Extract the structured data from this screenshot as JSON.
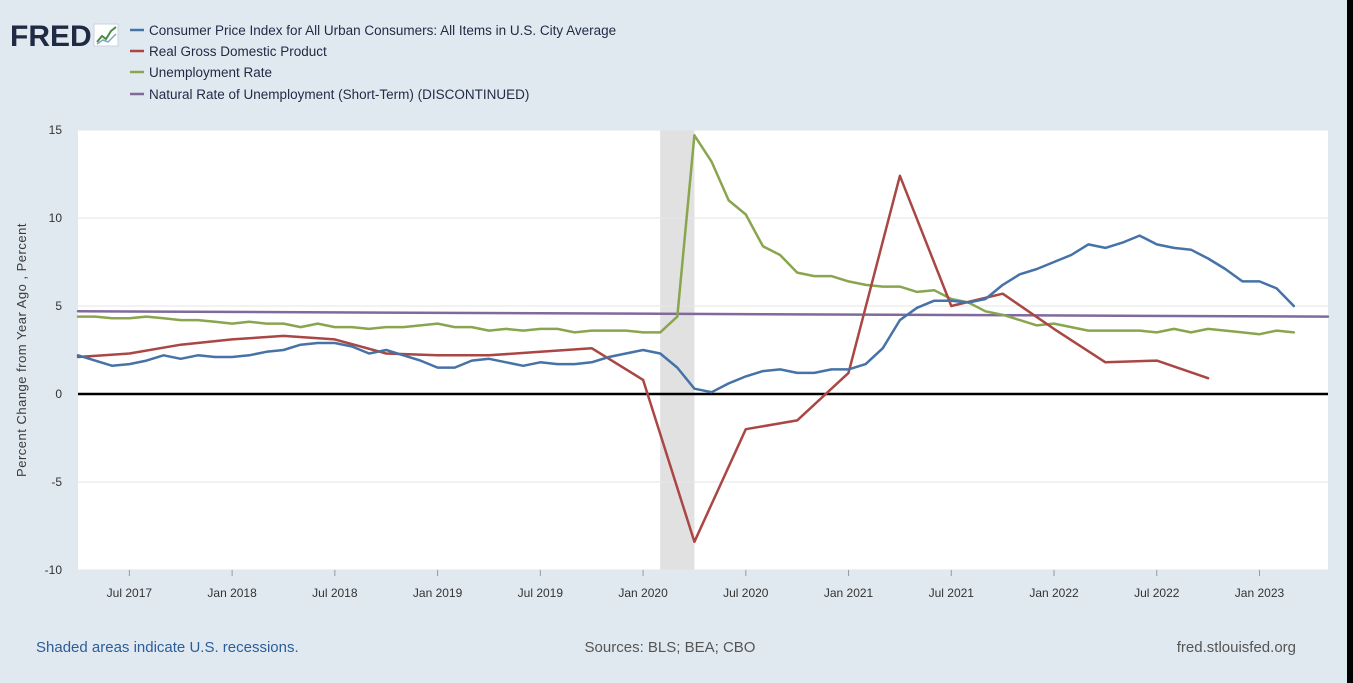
{
  "header": {
    "logo_text": "FRED",
    "legend": [
      {
        "label": "Consumer Price Index for All Urban Consumers: All Items in U.S. City Average",
        "color": "#4572a7"
      },
      {
        "label": "Real Gross Domestic Product",
        "color": "#aa4643"
      },
      {
        "label": "Unemployment Rate",
        "color": "#89a54e"
      },
      {
        "label": "Natural Rate of Unemployment (Short-Term) (DISCONTINUED)",
        "color": "#80699b"
      }
    ]
  },
  "footer": {
    "note": "Shaded areas indicate U.S. recessions.",
    "sources": "Sources: BLS; BEA; CBO",
    "site": "fred.stlouisfed.org"
  },
  "chart_data": {
    "type": "line",
    "ylabel": "Percent Change from Year Ago , Percent",
    "ylim": [
      -10,
      15
    ],
    "yticks": [
      15,
      10,
      5,
      0,
      -5,
      -10
    ],
    "xlim": [
      "2017-04-01",
      "2023-05-01"
    ],
    "xticks": [
      "Jul 2017",
      "Jan 2018",
      "Jul 2018",
      "Jan 2019",
      "Jul 2019",
      "Jan 2020",
      "Jul 2020",
      "Jan 2021",
      "Jul 2021",
      "Jan 2022",
      "Jul 2022",
      "Jan 2023"
    ],
    "grid": true,
    "zero_line": true,
    "recession_shading": {
      "start": "2020-02",
      "end": "2020-04"
    },
    "series": [
      {
        "name": "Consumer Price Index for All Urban Consumers: All Items in U.S. City Average",
        "color": "#4572a7",
        "x": [
          "2017-04",
          "2017-05",
          "2017-06",
          "2017-07",
          "2017-08",
          "2017-09",
          "2017-10",
          "2017-11",
          "2017-12",
          "2018-01",
          "2018-02",
          "2018-03",
          "2018-04",
          "2018-05",
          "2018-06",
          "2018-07",
          "2018-08",
          "2018-09",
          "2018-10",
          "2018-11",
          "2018-12",
          "2019-01",
          "2019-02",
          "2019-03",
          "2019-04",
          "2019-05",
          "2019-06",
          "2019-07",
          "2019-08",
          "2019-09",
          "2019-10",
          "2019-11",
          "2019-12",
          "2020-01",
          "2020-02",
          "2020-03",
          "2020-04",
          "2020-05",
          "2020-06",
          "2020-07",
          "2020-08",
          "2020-09",
          "2020-10",
          "2020-11",
          "2020-12",
          "2021-01",
          "2021-02",
          "2021-03",
          "2021-04",
          "2021-05",
          "2021-06",
          "2021-07",
          "2021-08",
          "2021-09",
          "2021-10",
          "2021-11",
          "2021-12",
          "2022-01",
          "2022-02",
          "2022-03",
          "2022-04",
          "2022-05",
          "2022-06",
          "2022-07",
          "2022-08",
          "2022-09",
          "2022-10",
          "2022-11",
          "2022-12",
          "2023-01",
          "2023-02",
          "2023-03"
        ],
        "values": [
          2.2,
          1.9,
          1.6,
          1.7,
          1.9,
          2.2,
          2.0,
          2.2,
          2.1,
          2.1,
          2.2,
          2.4,
          2.5,
          2.8,
          2.9,
          2.9,
          2.7,
          2.3,
          2.5,
          2.2,
          1.9,
          1.5,
          1.5,
          1.9,
          2.0,
          1.8,
          1.6,
          1.8,
          1.7,
          1.7,
          1.8,
          2.1,
          2.3,
          2.5,
          2.3,
          1.5,
          0.3,
          0.1,
          0.6,
          1.0,
          1.3,
          1.4,
          1.2,
          1.2,
          1.4,
          1.4,
          1.7,
          2.6,
          4.2,
          4.9,
          5.3,
          5.3,
          5.2,
          5.4,
          6.2,
          6.8,
          7.1,
          7.5,
          7.9,
          8.5,
          8.3,
          8.6,
          9.0,
          8.5,
          8.3,
          8.2,
          7.7,
          7.1,
          6.4,
          6.4,
          6.0,
          5.0
        ]
      },
      {
        "name": "Real Gross Domestic Product",
        "color": "#aa4643",
        "x": [
          "2017-04",
          "2017-07",
          "2017-10",
          "2018-01",
          "2018-04",
          "2018-07",
          "2018-10",
          "2019-01",
          "2019-04",
          "2019-07",
          "2019-10",
          "2020-01",
          "2020-04",
          "2020-07",
          "2020-10",
          "2021-01",
          "2021-04",
          "2021-07",
          "2021-10",
          "2022-01",
          "2022-04",
          "2022-07",
          "2022-10"
        ],
        "values": [
          2.1,
          2.3,
          2.8,
          3.1,
          3.3,
          3.1,
          2.3,
          2.2,
          2.2,
          2.4,
          2.6,
          0.8,
          -8.4,
          -2.0,
          -1.5,
          1.2,
          12.4,
          5.0,
          5.7,
          3.7,
          1.8,
          1.9,
          0.9
        ]
      },
      {
        "name": "Unemployment Rate",
        "color": "#89a54e",
        "x": [
          "2017-04",
          "2017-05",
          "2017-06",
          "2017-07",
          "2017-08",
          "2017-09",
          "2017-10",
          "2017-11",
          "2017-12",
          "2018-01",
          "2018-02",
          "2018-03",
          "2018-04",
          "2018-05",
          "2018-06",
          "2018-07",
          "2018-08",
          "2018-09",
          "2018-10",
          "2018-11",
          "2018-12",
          "2019-01",
          "2019-02",
          "2019-03",
          "2019-04",
          "2019-05",
          "2019-06",
          "2019-07",
          "2019-08",
          "2019-09",
          "2019-10",
          "2019-11",
          "2019-12",
          "2020-01",
          "2020-02",
          "2020-03",
          "2020-04",
          "2020-05",
          "2020-06",
          "2020-07",
          "2020-08",
          "2020-09",
          "2020-10",
          "2020-11",
          "2020-12",
          "2021-01",
          "2021-02",
          "2021-03",
          "2021-04",
          "2021-05",
          "2021-06",
          "2021-07",
          "2021-08",
          "2021-09",
          "2021-10",
          "2021-11",
          "2021-12",
          "2022-01",
          "2022-02",
          "2022-03",
          "2022-04",
          "2022-05",
          "2022-06",
          "2022-07",
          "2022-08",
          "2022-09",
          "2022-10",
          "2022-11",
          "2022-12",
          "2023-01",
          "2023-02",
          "2023-03"
        ],
        "values": [
          4.4,
          4.4,
          4.3,
          4.3,
          4.4,
          4.3,
          4.2,
          4.2,
          4.1,
          4.0,
          4.1,
          4.0,
          4.0,
          3.8,
          4.0,
          3.8,
          3.8,
          3.7,
          3.8,
          3.8,
          3.9,
          4.0,
          3.8,
          3.8,
          3.6,
          3.7,
          3.6,
          3.7,
          3.7,
          3.5,
          3.6,
          3.6,
          3.6,
          3.5,
          3.5,
          4.4,
          14.7,
          13.2,
          11.0,
          10.2,
          8.4,
          7.9,
          6.9,
          6.7,
          6.7,
          6.4,
          6.2,
          6.1,
          6.1,
          5.8,
          5.9,
          5.4,
          5.2,
          4.7,
          4.5,
          4.2,
          3.9,
          4.0,
          3.8,
          3.6,
          3.6,
          3.6,
          3.6,
          3.5,
          3.7,
          3.5,
          3.7,
          3.6,
          3.5,
          3.4,
          3.6,
          3.5
        ]
      },
      {
        "name": "Natural Rate of Unemployment (Short-Term) (DISCONTINUED)",
        "color": "#80699b",
        "x": [
          "2017-04",
          "2023-05"
        ],
        "values": [
          4.7,
          4.4
        ]
      }
    ]
  }
}
